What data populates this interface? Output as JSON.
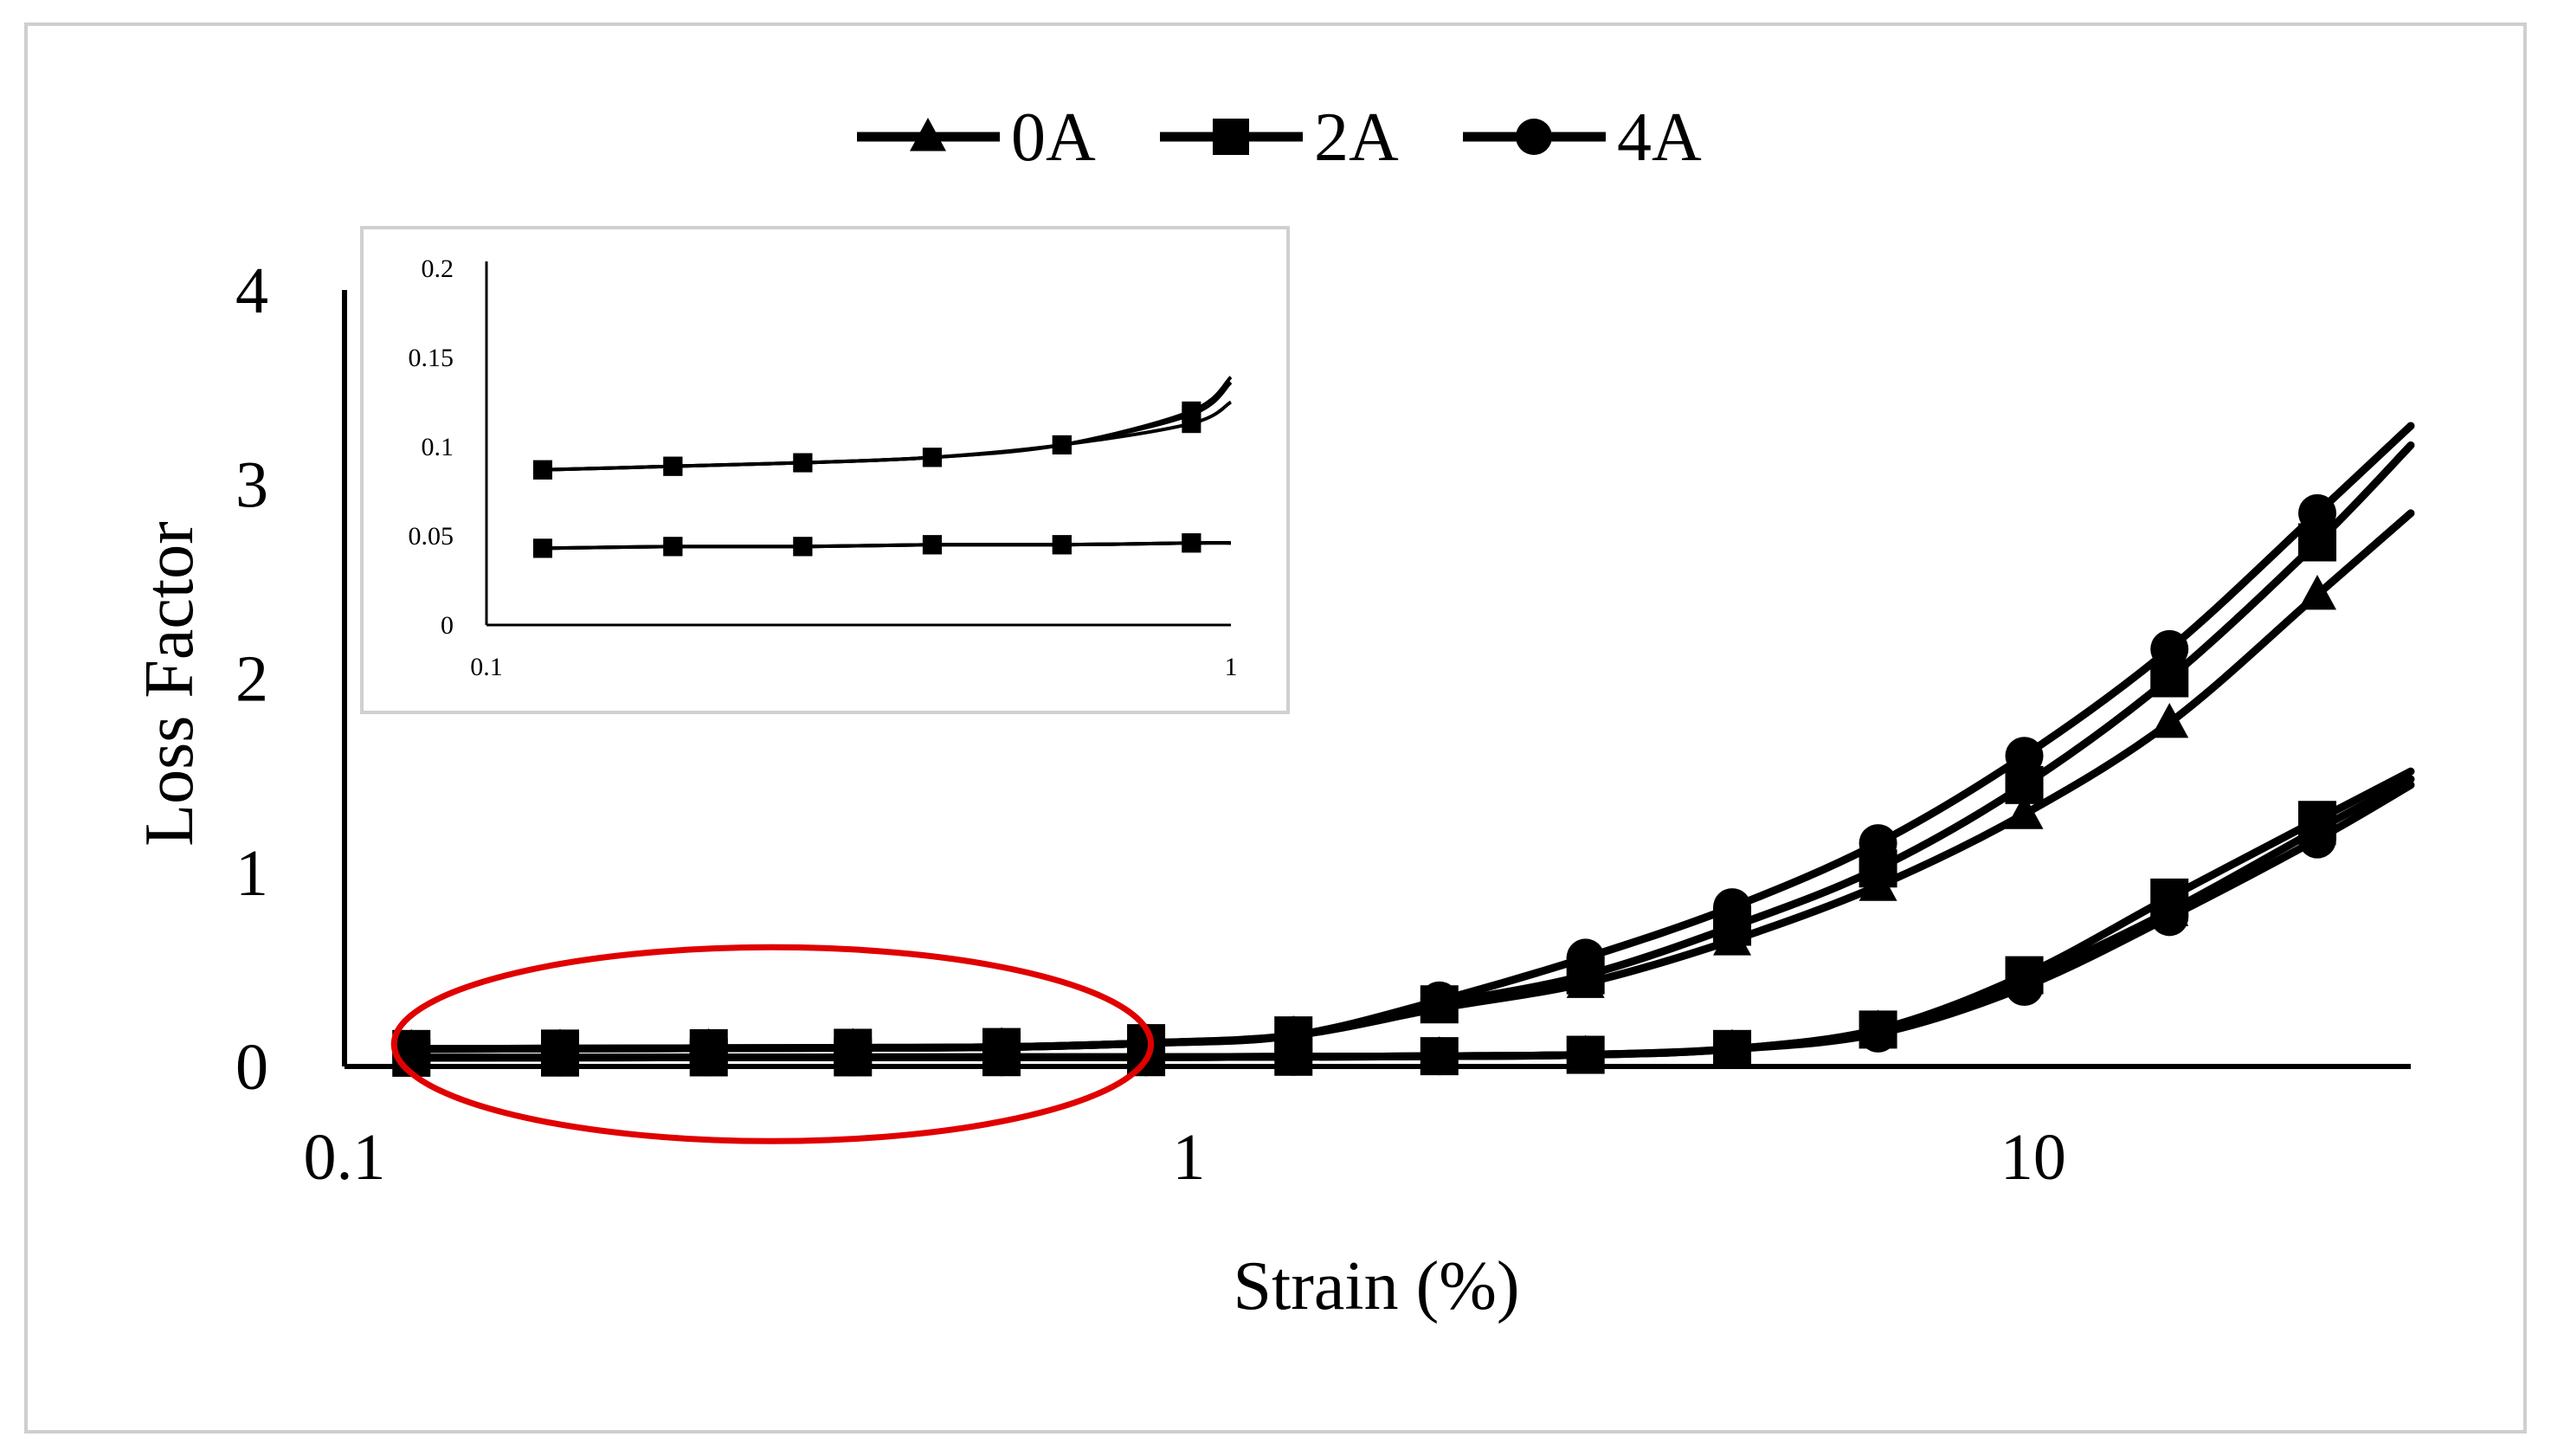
{
  "chart_data": [
    {
      "id": "main",
      "type": "line",
      "x_scale": "log",
      "xlabel": "Strain (%)",
      "ylabel": "Loss Factor",
      "xlim": [
        0.1,
        28
      ],
      "ylim": [
        0,
        4
      ],
      "x_ticks": [
        {
          "value": 0.1,
          "label": "0.1"
        },
        {
          "value": 1,
          "label": "1"
        },
        {
          "value": 10,
          "label": "10"
        }
      ],
      "y_ticks": [
        {
          "value": 0,
          "label": "0"
        },
        {
          "value": 1,
          "label": "1"
        },
        {
          "value": 2,
          "label": "2"
        },
        {
          "value": 3,
          "label": "3"
        },
        {
          "value": 4,
          "label": "4"
        }
      ],
      "legend": {
        "placement": "top-center",
        "entries": [
          {
            "name": "0A",
            "marker": "triangle"
          },
          {
            "name": "2A",
            "marker": "square"
          },
          {
            "name": "4A",
            "marker": "circle"
          }
        ]
      },
      "x": [
        0.12,
        0.18,
        0.27,
        0.4,
        0.6,
        0.89,
        1.33,
        1.98,
        2.95,
        4.4,
        6.55,
        9.76,
        14.5,
        21.7
      ],
      "series": [
        {
          "name": "0A",
          "group": "upper",
          "marker": "triangle",
          "values": [
            0.09,
            0.092,
            0.094,
            0.096,
            0.1,
            0.12,
            0.16,
            0.3,
            0.43,
            0.65,
            0.93,
            1.3,
            1.77,
            2.43
          ],
          "end_value": 2.85
        },
        {
          "name": "2A",
          "group": "upper",
          "marker": "square",
          "values": [
            0.09,
            0.092,
            0.094,
            0.096,
            0.1,
            0.12,
            0.16,
            0.32,
            0.47,
            0.72,
            1.02,
            1.45,
            2.0,
            2.7
          ],
          "end_value": 3.2
        },
        {
          "name": "4A",
          "group": "upper",
          "marker": "circle",
          "values": [
            0.09,
            0.092,
            0.094,
            0.096,
            0.1,
            0.12,
            0.16,
            0.34,
            0.56,
            0.82,
            1.15,
            1.6,
            2.15,
            2.85
          ],
          "end_value": 3.3
        },
        {
          "name": "0A",
          "group": "lower",
          "marker": "triangle",
          "values": [
            0.045,
            0.046,
            0.047,
            0.047,
            0.048,
            0.048,
            0.05,
            0.053,
            0.06,
            0.09,
            0.19,
            0.45,
            0.8,
            1.22
          ],
          "end_value": 1.48
        },
        {
          "name": "2A",
          "group": "lower",
          "marker": "square",
          "values": [
            0.045,
            0.046,
            0.047,
            0.047,
            0.048,
            0.048,
            0.05,
            0.053,
            0.06,
            0.09,
            0.19,
            0.47,
            0.87,
            1.27
          ],
          "end_value": 1.52
        },
        {
          "name": "4A",
          "group": "lower",
          "marker": "circle",
          "values": [
            0.045,
            0.046,
            0.047,
            0.047,
            0.048,
            0.048,
            0.05,
            0.053,
            0.06,
            0.09,
            0.17,
            0.41,
            0.77,
            1.17
          ],
          "end_value": 1.45
        }
      ],
      "annotation": {
        "type": "ellipse",
        "color": "#e00000",
        "x_range": [
          0.12,
          0.85
        ],
        "y_center": 0.07
      }
    },
    {
      "id": "inset",
      "type": "line",
      "x_scale": "log",
      "xlim": [
        0.1,
        1
      ],
      "ylim": [
        0,
        0.2
      ],
      "x_ticks": [
        {
          "value": 0.1,
          "label": "0.1"
        },
        {
          "value": 1,
          "label": "1"
        }
      ],
      "y_ticks": [
        {
          "value": 0,
          "label": "0"
        },
        {
          "value": 0.05,
          "label": "0.05"
        },
        {
          "value": 0.1,
          "label": "0.1"
        },
        {
          "value": 0.15,
          "label": "0.15"
        },
        {
          "value": 0.2,
          "label": "0.2"
        }
      ],
      "x": [
        0.119,
        0.178,
        0.266,
        0.397,
        0.593,
        0.885
      ],
      "series": [
        {
          "name": "0A",
          "group": "upper",
          "marker": "square",
          "values": [
            0.087,
            0.089,
            0.091,
            0.094,
            0.101,
            0.113
          ],
          "end_value": 0.125
        },
        {
          "name": "2A",
          "group": "upper",
          "marker": "square",
          "values": [
            0.087,
            0.089,
            0.091,
            0.094,
            0.101,
            0.118
          ],
          "end_value": 0.136
        },
        {
          "name": "4A",
          "group": "upper",
          "marker": "square",
          "values": [
            0.087,
            0.089,
            0.091,
            0.094,
            0.101,
            0.12
          ],
          "end_value": 0.139
        },
        {
          "name": "0A",
          "group": "lower",
          "marker": "square",
          "values": [
            0.043,
            0.044,
            0.044,
            0.045,
            0.045,
            0.046
          ],
          "end_value": 0.046
        },
        {
          "name": "2A",
          "group": "lower",
          "marker": "square",
          "values": [
            0.043,
            0.044,
            0.044,
            0.045,
            0.045,
            0.046
          ],
          "end_value": 0.046
        },
        {
          "name": "4A",
          "group": "lower",
          "marker": "square",
          "values": [
            0.043,
            0.044,
            0.044,
            0.045,
            0.045,
            0.046
          ],
          "end_value": 0.046
        }
      ]
    }
  ]
}
